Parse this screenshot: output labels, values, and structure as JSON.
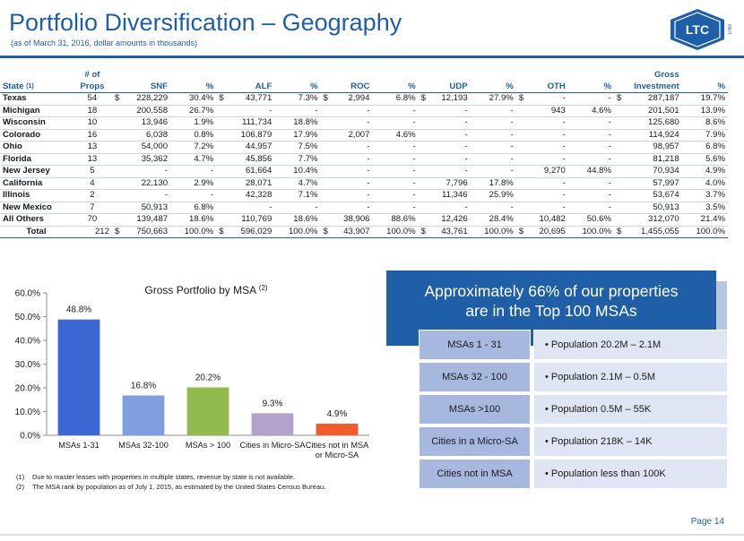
{
  "header": {
    "title": "Portfolio Diversification – Geography",
    "subtitle": "(as of March 31, 2016, dollar amounts in thousands)",
    "logo_text": "LTC",
    "logo_subtext": "REIT"
  },
  "table": {
    "header_top": [
      "",
      "# of",
      "",
      "",
      "",
      "",
      "",
      "",
      "",
      "",
      "",
      "",
      "Gross",
      ""
    ],
    "header": [
      "State",
      "Props",
      "SNF",
      "%",
      "ALF",
      "%",
      "ROC",
      "%",
      "UDP",
      "%",
      "OTH",
      "%",
      "Investment",
      "%"
    ],
    "state_sup": "(1)",
    "rows": [
      {
        "state": "Texas",
        "props": "54",
        "snf_c": "$",
        "snf": "228,229",
        "snf_p": "30.4%",
        "alf_c": "$",
        "alf": "43,771",
        "alf_p": "7.3%",
        "roc_c": "$",
        "roc": "2,994",
        "roc_p": "6.8%",
        "udp_c": "$",
        "udp": "12,193",
        "udp_p": "27.9%",
        "oth_c": "$",
        "oth": "-",
        "oth_p": "-",
        "gi_c": "$",
        "gi": "287,187",
        "gi_p": "19.7%"
      },
      {
        "state": "Michigan",
        "props": "18",
        "snf_c": "",
        "snf": "200,558",
        "snf_p": "26.7%",
        "alf_c": "",
        "alf": "-",
        "alf_p": "-",
        "roc_c": "",
        "roc": "-",
        "roc_p": "-",
        "udp_c": "",
        "udp": "-",
        "udp_p": "-",
        "oth_c": "",
        "oth": "943",
        "oth_p": "4.6%",
        "gi_c": "",
        "gi": "201,501",
        "gi_p": "13.9%"
      },
      {
        "state": "Wisconsin",
        "props": "10",
        "snf_c": "",
        "snf": "13,946",
        "snf_p": "1.9%",
        "alf_c": "",
        "alf": "111,734",
        "alf_p": "18.8%",
        "roc_c": "",
        "roc": "-",
        "roc_p": "-",
        "udp_c": "",
        "udp": "-",
        "udp_p": "-",
        "oth_c": "",
        "oth": "-",
        "oth_p": "-",
        "gi_c": "",
        "gi": "125,680",
        "gi_p": "8.6%"
      },
      {
        "state": "Colorado",
        "props": "16",
        "snf_c": "",
        "snf": "6,038",
        "snf_p": "0.8%",
        "alf_c": "",
        "alf": "106,879",
        "alf_p": "17.9%",
        "roc_c": "",
        "roc": "2,007",
        "roc_p": "4.6%",
        "udp_c": "",
        "udp": "-",
        "udp_p": "-",
        "oth_c": "",
        "oth": "-",
        "oth_p": "-",
        "gi_c": "",
        "gi": "114,924",
        "gi_p": "7.9%"
      },
      {
        "state": "Ohio",
        "props": "13",
        "snf_c": "",
        "snf": "54,000",
        "snf_p": "7.2%",
        "alf_c": "",
        "alf": "44,957",
        "alf_p": "7.5%",
        "roc_c": "",
        "roc": "-",
        "roc_p": "-",
        "udp_c": "",
        "udp": "-",
        "udp_p": "-",
        "oth_c": "",
        "oth": "-",
        "oth_p": "-",
        "gi_c": "",
        "gi": "98,957",
        "gi_p": "6.8%"
      },
      {
        "state": "Florida",
        "props": "13",
        "snf_c": "",
        "snf": "35,362",
        "snf_p": "4.7%",
        "alf_c": "",
        "alf": "45,856",
        "alf_p": "7.7%",
        "roc_c": "",
        "roc": "-",
        "roc_p": "-",
        "udp_c": "",
        "udp": "-",
        "udp_p": "-",
        "oth_c": "",
        "oth": "-",
        "oth_p": "-",
        "gi_c": "",
        "gi": "81,218",
        "gi_p": "5.6%"
      },
      {
        "state": "New Jersey",
        "props": "5",
        "snf_c": "",
        "snf": "-",
        "snf_p": "-",
        "alf_c": "",
        "alf": "61,664",
        "alf_p": "10.4%",
        "roc_c": "",
        "roc": "-",
        "roc_p": "-",
        "udp_c": "",
        "udp": "-",
        "udp_p": "-",
        "oth_c": "",
        "oth": "9,270",
        "oth_p": "44.8%",
        "gi_c": "",
        "gi": "70,934",
        "gi_p": "4.9%"
      },
      {
        "state": "California",
        "props": "4",
        "snf_c": "",
        "snf": "22,130",
        "snf_p": "2.9%",
        "alf_c": "",
        "alf": "28,071",
        "alf_p": "4.7%",
        "roc_c": "",
        "roc": "-",
        "roc_p": "-",
        "udp_c": "",
        "udp": "7,796",
        "udp_p": "17.8%",
        "oth_c": "",
        "oth": "-",
        "oth_p": "-",
        "gi_c": "",
        "gi": "57,997",
        "gi_p": "4.0%"
      },
      {
        "state": "Illinois",
        "props": "2",
        "snf_c": "",
        "snf": "-",
        "snf_p": "-",
        "alf_c": "",
        "alf": "42,328",
        "alf_p": "7.1%",
        "roc_c": "",
        "roc": "-",
        "roc_p": "-",
        "udp_c": "",
        "udp": "11,346",
        "udp_p": "25.9%",
        "oth_c": "",
        "oth": "-",
        "oth_p": "-",
        "gi_c": "",
        "gi": "53,674",
        "gi_p": "3.7%"
      },
      {
        "state": "New Mexico",
        "props": "7",
        "snf_c": "",
        "snf": "50,913",
        "snf_p": "6.8%",
        "alf_c": "",
        "alf": "-",
        "alf_p": "-",
        "roc_c": "",
        "roc": "-",
        "roc_p": "-",
        "udp_c": "",
        "udp": "-",
        "udp_p": "-",
        "oth_c": "",
        "oth": "-",
        "oth_p": "-",
        "gi_c": "",
        "gi": "50,913",
        "gi_p": "3.5%"
      },
      {
        "state": "All Others",
        "props": "70",
        "snf_c": "",
        "snf": "139,487",
        "snf_p": "18.6%",
        "alf_c": "",
        "alf": "110,769",
        "alf_p": "18.6%",
        "roc_c": "",
        "roc": "38,906",
        "roc_p": "88.6%",
        "udp_c": "",
        "udp": "12,426",
        "udp_p": "28.4%",
        "oth_c": "",
        "oth": "10,482",
        "oth_p": "50.6%",
        "gi_c": "",
        "gi": "312,070",
        "gi_p": "21.4%"
      }
    ],
    "total": {
      "state": "Total",
      "props": "212",
      "snf_c": "$",
      "snf": "750,663",
      "snf_p": "100.0%",
      "alf_c": "$",
      "alf": "596,029",
      "alf_p": "100.0%",
      "roc_c": "$",
      "roc": "43,907",
      "roc_p": "100.0%",
      "udp_c": "$",
      "udp": "43,761",
      "udp_p": "100.0%",
      "oth_c": "$",
      "oth": "20,695",
      "oth_p": "100.0%",
      "gi_c": "$",
      "gi": "1,455,055",
      "gi_p": "100.0%"
    }
  },
  "chart_data": {
    "type": "bar",
    "title": "Gross Portfolio by MSA",
    "title_sup": "(2)",
    "categories": [
      "MSAs 1-31",
      "MSAs 32-100",
      "MSAs > 100",
      "Cities in Micro-SA",
      "Cities not in MSA|or Micro-SA"
    ],
    "values": [
      48.8,
      16.8,
      20.2,
      9.3,
      4.9
    ],
    "value_labels": [
      "48.8%",
      "16.8%",
      "20.2%",
      "9.3%",
      "4.9%"
    ],
    "colors": [
      "#3a67d1",
      "#7f9fdf",
      "#92bb4d",
      "#b3a3cb",
      "#f35a2a"
    ],
    "ylim": [
      0,
      60
    ],
    "yticks": [
      "0.0%",
      "10.0%",
      "20.0%",
      "30.0%",
      "40.0%",
      "50.0%",
      "60.0%"
    ],
    "ytick_values": [
      0,
      10,
      20,
      30,
      40,
      50,
      60
    ],
    "grid": false
  },
  "footnotes": [
    {
      "num": "(1)",
      "text": "Due to master leases with properties in multiple states, revenue by state is not available."
    },
    {
      "num": "(2)",
      "text": "The MSA rank by population as of July 1, 2015, as estimated by the United States Census Bureau."
    }
  ],
  "callout": {
    "heading_line1": "Approximately 66% of our properties",
    "heading_line2": "are in the Top 100 MSAs",
    "rows": [
      {
        "label": "MSAs 1 - 31",
        "desc": "• Population 20.2M – 2.1M"
      },
      {
        "label": "MSAs 32 - 100",
        "desc": "• Population 2.1M – 0.5M"
      },
      {
        "label": "MSAs >100",
        "desc": "• Population 0.5M – 55K"
      },
      {
        "label": "Cities in a Micro-SA",
        "desc": "• Population 218K – 14K"
      },
      {
        "label": "Cities not in MSA",
        "desc": "• Population less than 100K"
      }
    ]
  },
  "footer": {
    "page": "Page 14"
  },
  "colors": {
    "brand_blue": "#1f5fa8",
    "msa_label_bg": "#a7b8df",
    "msa_desc_bg": "#dfe5f3"
  }
}
